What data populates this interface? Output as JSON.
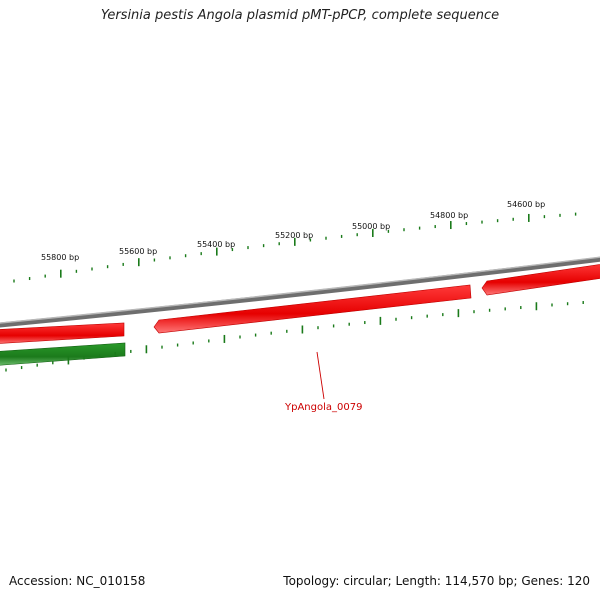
{
  "title": "Yersinia pestis Angola plasmid pMT-pPCP, complete sequence",
  "footer": {
    "accession": "Accession: NC_010158",
    "summary": "Topology: circular; Length: 114,570 bp; Genes: 120"
  },
  "scale": {
    "labels": [
      "55800 bp",
      "55600 bp",
      "55400 bp",
      "55200 bp",
      "55000 bp",
      "54800 bp",
      "54600 bp"
    ]
  },
  "genes": {
    "highlight_label": "YpAngola_0079"
  },
  "colors": {
    "backbone": "#8a8a8a",
    "forward_gene": "#ee0000",
    "reverse_gene": "#1f8a1f",
    "tick": "#1a7a1a",
    "label_line": "#cc0000"
  }
}
